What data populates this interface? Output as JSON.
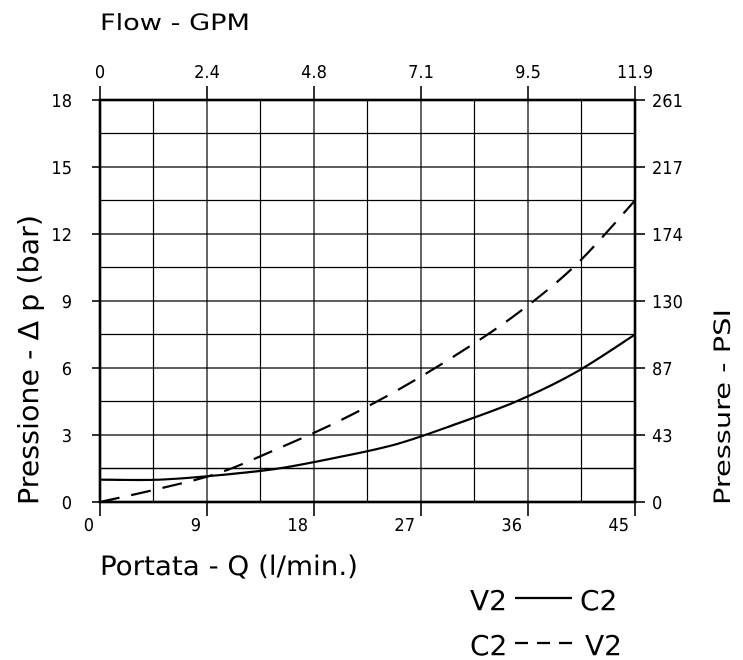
{
  "chart_data": {
    "type": "line",
    "x_bottom": {
      "label": "Portata - Q (l/min.)",
      "ticks": [
        "0",
        "9",
        "18",
        "27",
        "36",
        "45"
      ],
      "range": [
        0,
        45
      ]
    },
    "x_top": {
      "label": "Flow - GPM",
      "ticks": [
        "0",
        "2.4",
        "4.8",
        "7.1",
        "9.5",
        "11.9"
      ]
    },
    "y_left": {
      "label": "Pressione - Δ p (bar)",
      "ticks": [
        "0",
        "3",
        "6",
        "9",
        "12",
        "15",
        "18"
      ],
      "range": [
        0,
        18
      ]
    },
    "y_right": {
      "label": "Pressure - PSI",
      "ticks": [
        "0",
        "43",
        "87",
        "130",
        "174",
        "217",
        "261"
      ]
    },
    "grid": true,
    "series": [
      {
        "name": "V2 —— C2",
        "style": "solid",
        "x": [
          0,
          5,
          10,
          15,
          20,
          25,
          30,
          35,
          40,
          45
        ],
        "y": [
          1.0,
          1.0,
          1.2,
          1.5,
          2.0,
          2.6,
          3.5,
          4.5,
          5.8,
          7.5
        ]
      },
      {
        "name": "C2 - - - V2",
        "style": "dashed",
        "x": [
          0,
          5,
          10,
          15,
          20,
          25,
          30,
          35,
          40,
          45
        ],
        "y": [
          0.0,
          0.6,
          1.3,
          2.4,
          3.6,
          5.0,
          6.6,
          8.4,
          10.6,
          13.5
        ]
      }
    ]
  },
  "legend": {
    "solid_left": "V2",
    "solid_right": "C2",
    "dashed_left": "C2",
    "dashed_right": "V2"
  }
}
